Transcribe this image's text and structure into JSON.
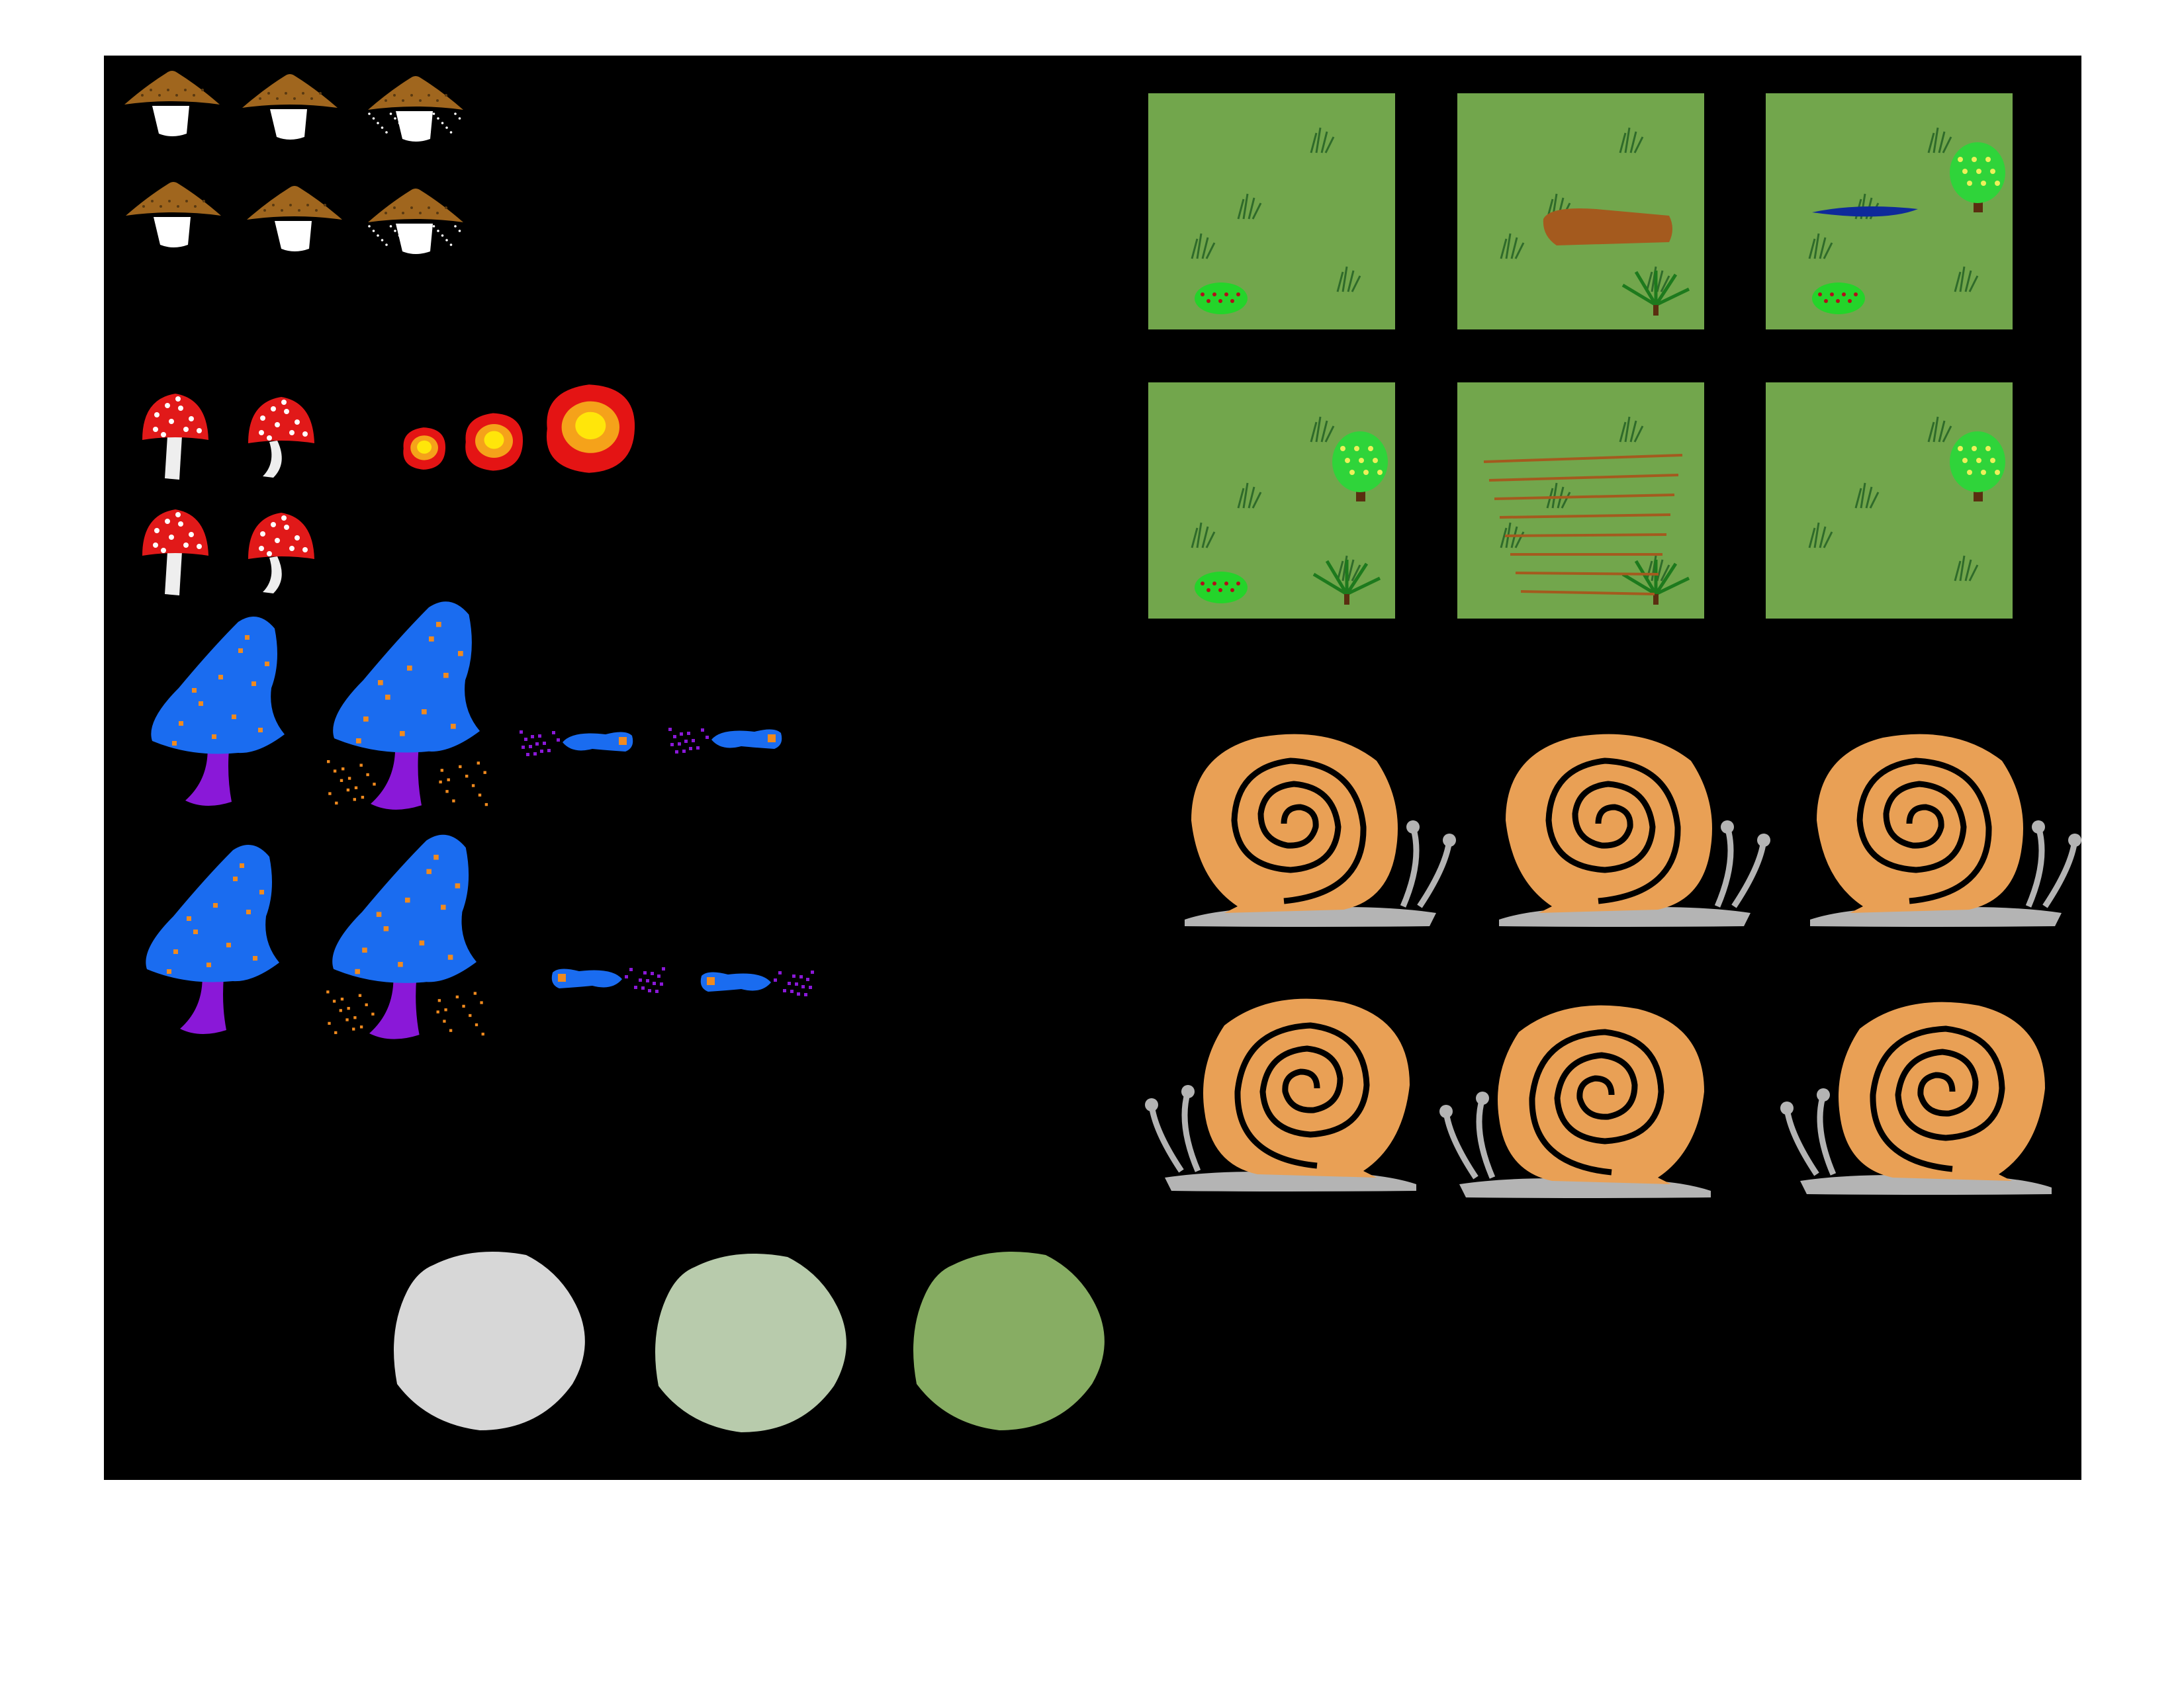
{
  "sheet": {
    "background": "#000000",
    "page_background": "#ffffff",
    "colors": {
      "brown_cap": "#a0661e",
      "stem_white": "#ffffff",
      "red_cap": "#e11919",
      "blue_cap": "#1a6cf0",
      "purple_stem": "#8a18d8",
      "orange_spot": "#f08a1e",
      "fire_outer": "#e41414",
      "fire_mid": "#f5a21a",
      "fire_core": "#ffe60a",
      "grass_tile": "#72a64c",
      "snail_shell": "#e9a055",
      "snail_body": "#b4b4b4",
      "rock_light": "#d7d7d7",
      "rock_mid": "#b8cbac",
      "rock_dark": "#87ad63"
    }
  },
  "sprites": {
    "brown_mushrooms": {
      "rows": 2,
      "cols": 3,
      "icon": "brown-mushroom-icon"
    },
    "red_mushrooms": {
      "rows": 2,
      "cols": 2,
      "icon": "red-mushroom-icon"
    },
    "fireballs": {
      "count": 3,
      "icon": "fireball-icon"
    },
    "blue_mushrooms": {
      "rows": 2,
      "cols": 2,
      "icon": "blue-mushroom-icon"
    },
    "blue_projectiles": {
      "rows": 2,
      "cols": 2,
      "icon": "spore-projectile-icon"
    },
    "rocks": {
      "count": 3,
      "icon": "rock-icon"
    },
    "grass_tiles": {
      "rows": 2,
      "cols": 3,
      "icon": "grass-tile-icon",
      "features": [
        [
          "grass",
          "bush"
        ],
        [
          "log",
          "shrub"
        ],
        [
          "puddle",
          "tree",
          "bush"
        ],
        [
          "tree",
          "bush",
          "shrub"
        ],
        [
          "dirt-path",
          "shrub"
        ],
        [
          "grass",
          "tree"
        ]
      ]
    },
    "snails": {
      "rows": 2,
      "cols": 3,
      "icon": "snail-icon",
      "facing": [
        "right",
        "left"
      ]
    }
  }
}
